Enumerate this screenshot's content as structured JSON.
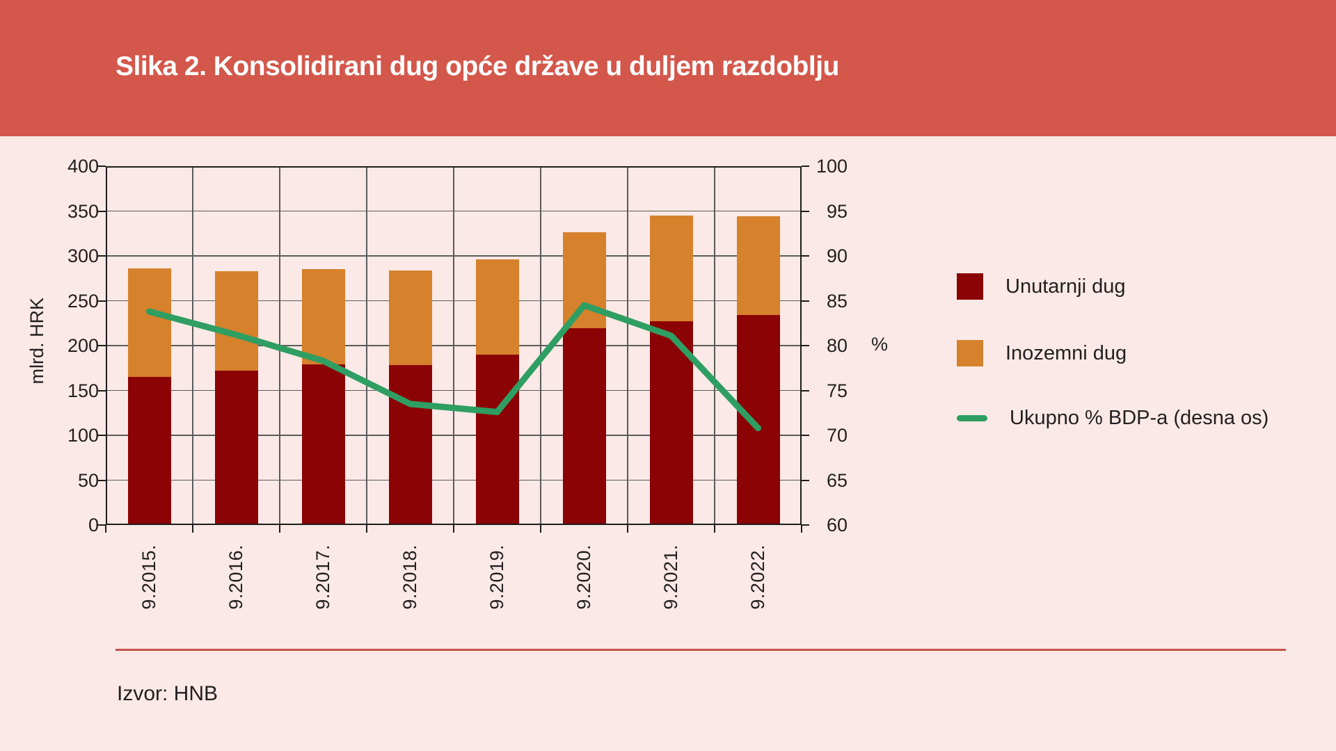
{
  "header": {
    "title": "Slika 2. Konsolidirani dug opće države u duljem razdoblju"
  },
  "chart_data": {
    "type": "bar",
    "subtype": "stacked-bars-with-line-overlay",
    "categories": [
      "9.2015.",
      "9.2016.",
      "9.2017.",
      "9.2018.",
      "9.2019.",
      "9.2020.",
      "9.2021.",
      "9.2022."
    ],
    "series": [
      {
        "name": "Unutarnji dug",
        "type": "bar",
        "axis": "left",
        "color": "#8B0305",
        "values": [
          165,
          172,
          179,
          178,
          190,
          219,
          227,
          234
        ]
      },
      {
        "name": "Inozemni dug",
        "type": "bar",
        "axis": "left",
        "color": "#D6812C",
        "values": [
          121,
          111,
          106,
          106,
          106,
          107,
          118,
          110
        ]
      },
      {
        "name": "Ukupno % BDP-a (desna os)",
        "type": "line",
        "axis": "right",
        "color": "#2F9E63",
        "values": [
          83.8,
          81.2,
          78.3,
          73.5,
          72.6,
          84.5,
          81.1,
          70.8
        ]
      }
    ],
    "stacked_totals": [
      286,
      283,
      285,
      284,
      296,
      326,
      345,
      344
    ],
    "left_axis": {
      "label": "mlrd. HRK",
      "min": 0,
      "max": 400,
      "step": 50,
      "ticks": [
        400,
        350,
        300,
        250,
        200,
        150,
        100,
        50,
        0
      ]
    },
    "right_axis": {
      "label": "%",
      "min": 60,
      "max": 100,
      "step": 5,
      "ticks": [
        100,
        95,
        90,
        85,
        80,
        75,
        70,
        65,
        60
      ]
    },
    "grid": true,
    "legend_position": "right"
  },
  "source": {
    "text": "Izvor: HNB"
  },
  "colors": {
    "header_bg": "#D4574B",
    "page_bg": "#FAE9E6",
    "title_text": "#FFFFFF",
    "axis_text": "#231F20",
    "frame": "#1D1D1B",
    "gridline": "#5B5B5B",
    "divider_rule": "#C4524C",
    "bar_domestic": "#8B0305",
    "bar_foreign": "#D6812C",
    "line_gdp": "#2F9E63"
  }
}
